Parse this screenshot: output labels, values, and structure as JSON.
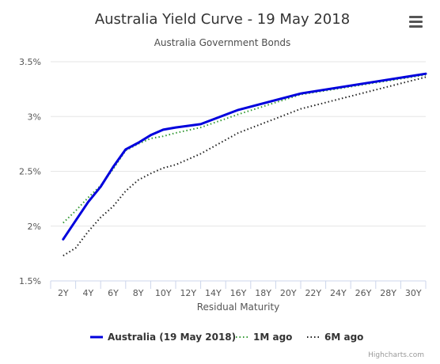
{
  "header": {
    "title": "Australia Yield Curve - 19 May 2018",
    "subtitle": "Australia Government Bonds",
    "menu_icon": "hamburger-menu-icon"
  },
  "credits": "Highcharts.com",
  "chart_data": {
    "type": "line",
    "title": "Australia Yield Curve - 19 May 2018",
    "subtitle": "Australia Government Bonds",
    "xlabel": "Residual Maturity",
    "ylabel": "",
    "x_tick_labels": [
      "2Y",
      "4Y",
      "6Y",
      "8Y",
      "10Y",
      "12Y",
      "14Y",
      "16Y",
      "18Y",
      "20Y",
      "22Y",
      "24Y",
      "26Y",
      "28Y",
      "30Y"
    ],
    "y_ticks": [
      1.5,
      2,
      2.5,
      3,
      3.5
    ],
    "y_tick_labels": [
      "1.5%",
      "2%",
      "2.5%",
      "3%",
      "3.5%"
    ],
    "ylim": [
      1.5,
      3.5
    ],
    "grid": "horizontal",
    "legend_position": "bottom",
    "series": [
      {
        "name": "Australia (19 May 2018)",
        "color": "#0000dd",
        "dash": "solid",
        "x": [
          1,
          2,
          3,
          4,
          5,
          6,
          7,
          8,
          9,
          10,
          12,
          15,
          20,
          30
        ],
        "y": [
          1.88,
          2.05,
          2.22,
          2.36,
          2.54,
          2.7,
          2.76,
          2.83,
          2.88,
          2.9,
          2.93,
          3.06,
          3.21,
          3.39
        ]
      },
      {
        "name": "1M ago",
        "color": "#339933",
        "dash": "dotted",
        "x": [
          1,
          2,
          3,
          4,
          5,
          6,
          7,
          8,
          9,
          10,
          12,
          15,
          20,
          30
        ],
        "y": [
          2.03,
          2.14,
          2.26,
          2.37,
          2.52,
          2.69,
          2.75,
          2.8,
          2.82,
          2.85,
          2.9,
          3.02,
          3.2,
          3.38
        ]
      },
      {
        "name": "6M ago",
        "color": "#222222",
        "dash": "dotted",
        "x": [
          1,
          2,
          3,
          4,
          5,
          6,
          7,
          8,
          9,
          10,
          12,
          15,
          20,
          30
        ],
        "y": [
          1.73,
          1.8,
          1.95,
          2.08,
          2.18,
          2.32,
          2.42,
          2.48,
          2.53,
          2.56,
          2.66,
          2.85,
          3.07,
          3.36
        ]
      }
    ]
  }
}
